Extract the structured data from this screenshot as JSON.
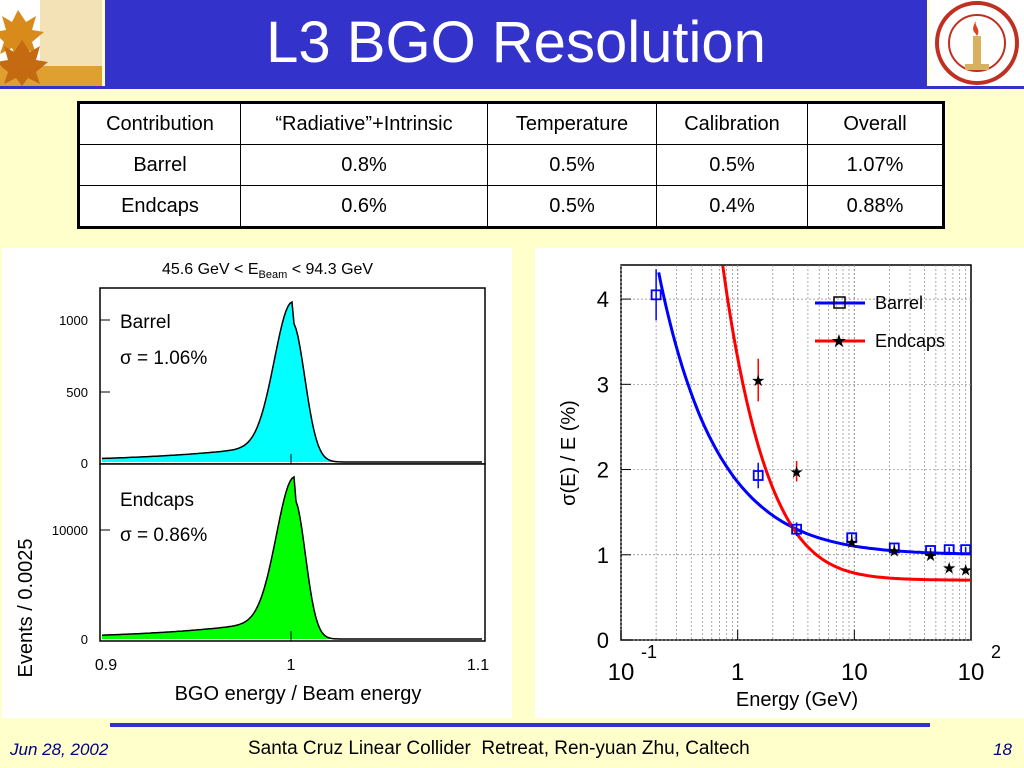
{
  "title": "L3 BGO Resolution",
  "table": {
    "headers": [
      "Contribution",
      "“Radiative”+Intrinsic",
      "Temperature",
      "Calibration",
      "Overall"
    ],
    "rows": [
      [
        "Barrel",
        "0.8%",
        "0.5%",
        "0.5%",
        "1.07%"
      ],
      [
        "Endcaps",
        "0.6%",
        "0.5%",
        "0.4%",
        "0.88%"
      ]
    ]
  },
  "left_plot": {
    "header_main": "45.6 GeV < E",
    "header_sub": "Beam",
    "header_tail": " < 94.3 GeV",
    "ylabel": "Events / 0.0025",
    "xlabel": "BGO energy / Beam energy",
    "x_ticks": [
      "0.9",
      "1",
      "1.1"
    ],
    "barrel": {
      "label": "Barrel",
      "sigma": "σ = 1.06%",
      "y_ticks": [
        "1000",
        "500",
        "0"
      ],
      "color": "#00ffff"
    },
    "endcaps": {
      "label": "Endcaps",
      "sigma": "σ = 0.86%",
      "y_ticks": [
        "10000",
        "0"
      ],
      "color": "#00ff00"
    }
  },
  "chart_data": {
    "type": "scatter",
    "xlabel": "Energy (GeV)",
    "ylabel": "σ(E) / E  (%)",
    "x_scale": "log",
    "xlim": [
      0.1,
      100
    ],
    "ylim": [
      0,
      4.4
    ],
    "x_tick_labels": [
      {
        "base": "10",
        "exp": "-1"
      },
      {
        "base": "1",
        "exp": ""
      },
      {
        "base": "10",
        "exp": ""
      },
      {
        "base": "10",
        "exp": "2"
      }
    ],
    "y_ticks": [
      0,
      1,
      2,
      3,
      4
    ],
    "grid": true,
    "legend_position": "top-right",
    "series": [
      {
        "name": "Barrel",
        "color": "#0000ff",
        "marker": "square",
        "x": [
          0.2,
          1.5,
          3.2,
          9.5,
          22,
          45,
          65,
          90
        ],
        "y": [
          4.05,
          1.93,
          1.3,
          1.2,
          1.08,
          1.05,
          1.06,
          1.06
        ],
        "err": [
          0.3,
          0.15,
          0.08,
          0.05,
          0.04,
          0.03,
          0.03,
          0.03
        ]
      },
      {
        "name": "Endcaps",
        "color": "#ff0000",
        "marker": "star",
        "x": [
          1.5,
          3.2,
          9.5,
          22,
          45,
          65,
          90
        ],
        "y": [
          3.05,
          1.98,
          1.15,
          1.05,
          1.0,
          0.85,
          0.83
        ],
        "err": [
          0.25,
          0.12,
          0.05,
          0.04,
          0.03,
          0.03,
          0.03
        ]
      }
    ]
  },
  "footer": {
    "date": "Jun 28, 2002",
    "center": "Santa Cruz Linear Collider  Retreat, Ren-yuan Zhu, Caltech",
    "page": "18"
  }
}
